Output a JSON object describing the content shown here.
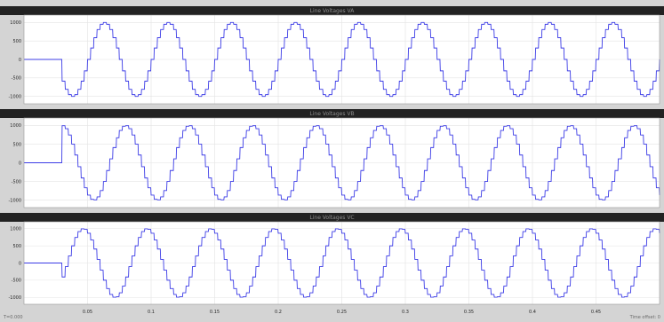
{
  "scope": {
    "time_offset": "T=0.000",
    "status_right": "Time offset: 0"
  },
  "chart_data": [
    {
      "type": "line",
      "title": "Line Voltages VA",
      "xlabel": "",
      "ylabel": "",
      "xlim": [
        0,
        0.5
      ],
      "ylim": [
        -1200,
        1200
      ],
      "x_ticks": [
        "0.05",
        "0.1",
        "0.15",
        "0.2",
        "0.25",
        "0.3",
        "0.35",
        "0.4",
        "0.45"
      ],
      "y_ticks": [
        "1000",
        "500",
        "0",
        "-500",
        "-1000"
      ],
      "grid": true,
      "line_color": "#3c3ce6",
      "series": [
        {
          "amplitude": 1000,
          "frequency_hz": 20,
          "start_time": 0.03,
          "start_phase_deg": 0,
          "pre_start_value": 0
        }
      ]
    },
    {
      "type": "line",
      "title": "Line Voltages VB",
      "xlabel": "",
      "ylabel": "",
      "xlim": [
        0,
        0.5
      ],
      "ylim": [
        -1200,
        1200
      ],
      "x_ticks": [
        "0.05",
        "0.1",
        "0.15",
        "0.2",
        "0.25",
        "0.3",
        "0.35",
        "0.4",
        "0.45"
      ],
      "y_ticks": [
        "1000",
        "500",
        "0",
        "-500",
        "-1000"
      ],
      "grid": true,
      "line_color": "#3c3ce6",
      "series": [
        {
          "amplitude": 1000,
          "frequency_hz": 20,
          "start_time": 0.03,
          "start_phase_deg": 240,
          "pre_start_value": 0
        }
      ]
    },
    {
      "type": "line",
      "title": "Line Voltages VC",
      "xlabel": "",
      "ylabel": "",
      "xlim": [
        0,
        0.5
      ],
      "ylim": [
        -1200,
        1200
      ],
      "x_ticks": [
        "0.05",
        "0.1",
        "0.15",
        "0.2",
        "0.25",
        "0.3",
        "0.35",
        "0.4",
        "0.45"
      ],
      "y_ticks": [
        "1000",
        "500",
        "0",
        "-500",
        "-1000"
      ],
      "grid": true,
      "line_color": "#3c3ce6",
      "series": [
        {
          "amplitude": 1000,
          "frequency_hz": 20,
          "start_time": 0.03,
          "start_phase_deg": 120,
          "pre_start_value": 0
        }
      ]
    }
  ]
}
